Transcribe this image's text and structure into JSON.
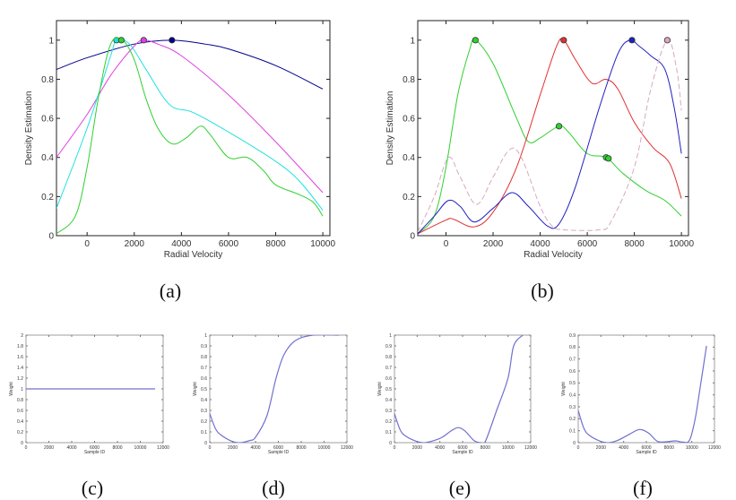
{
  "chart_data": [
    {
      "id": "a",
      "type": "line",
      "caption": "(a)",
      "xlabel": "Radial Velocity",
      "ylabel": "Density Estimation",
      "xlim": [
        -1300,
        10300
      ],
      "ylim": [
        0,
        1.1
      ],
      "xticks": [
        0,
        2000,
        4000,
        6000,
        8000,
        10000
      ],
      "yticks": [
        0,
        0.2,
        0.4,
        0.6,
        0.8,
        1
      ],
      "grid": false,
      "series": [
        {
          "color": "#00008b",
          "dash": false,
          "x": [
            -1300,
            0,
            2000,
            3600,
            5000,
            6000,
            8000,
            10000
          ],
          "y": [
            0.85,
            0.91,
            0.98,
            1.0,
            0.98,
            0.955,
            0.87,
            0.75
          ],
          "marker": [
            [
              3600,
              1
            ]
          ]
        },
        {
          "color": "#e040e0",
          "dash": false,
          "x": [
            -1300,
            0,
            1000,
            2000,
            2400,
            3000,
            4000,
            6000,
            8000,
            10000
          ],
          "y": [
            0.4,
            0.62,
            0.82,
            0.97,
            1.0,
            0.98,
            0.92,
            0.72,
            0.48,
            0.22
          ],
          "marker": [
            [
              2400,
              1
            ]
          ]
        },
        {
          "color": "#20e0e0",
          "dash": false,
          "x": [
            -1300,
            0,
            1000,
            1250,
            1800,
            2500,
            3500,
            4500,
            6000,
            8000,
            9000,
            10000
          ],
          "y": [
            0.14,
            0.55,
            0.92,
            1.0,
            0.98,
            0.85,
            0.67,
            0.63,
            0.53,
            0.38,
            0.28,
            0.13
          ],
          "marker": [
            [
              1250,
              1
            ]
          ]
        },
        {
          "color": "#30d030",
          "dash": false,
          "x": [
            -1300,
            -500,
            0,
            500,
            1000,
            1500,
            2000,
            2500,
            3000,
            3600,
            4200,
            4800,
            5200,
            6000,
            6800,
            7500,
            8000,
            9000,
            9600,
            10000
          ],
          "y": [
            0.01,
            0.1,
            0.35,
            0.72,
            0.98,
            1.0,
            0.9,
            0.7,
            0.55,
            0.47,
            0.5,
            0.56,
            0.52,
            0.4,
            0.4,
            0.33,
            0.26,
            0.21,
            0.17,
            0.1
          ],
          "marker": [
            [
              1450,
              1
            ]
          ]
        }
      ]
    },
    {
      "id": "b",
      "type": "line",
      "caption": "(b)",
      "xlabel": "Radial Velocity",
      "ylabel": "Density Estimation",
      "xlim": [
        -1200,
        10300
      ],
      "ylim": [
        0,
        1.1
      ],
      "xticks": [
        0,
        2000,
        4000,
        6000,
        8000,
        10000
      ],
      "yticks": [
        0,
        0.2,
        0.4,
        0.6,
        0.8,
        1
      ],
      "grid": false,
      "series": [
        {
          "color": "#30d030",
          "dash": false,
          "x": [
            -1200,
            -500,
            0,
            500,
            1000,
            1250,
            2000,
            3000,
            3500,
            4000,
            4800,
            5200,
            6000,
            6800,
            7500,
            8500,
            9300,
            10000
          ],
          "y": [
            0.01,
            0.1,
            0.35,
            0.72,
            0.95,
            1.0,
            0.88,
            0.6,
            0.48,
            0.5,
            0.56,
            0.53,
            0.42,
            0.4,
            0.32,
            0.23,
            0.18,
            0.1
          ],
          "marker": [
            [
              1250,
              1
            ],
            [
              4800,
              0.56
            ],
            [
              6800,
              0.4
            ],
            [
              6900,
              0.395
            ]
          ]
        },
        {
          "color": "#e03030",
          "dash": false,
          "x": [
            -1200,
            0,
            300,
            1200,
            2000,
            3000,
            4000,
            4700,
            5000,
            5500,
            6200,
            6800,
            7300,
            8000,
            8800,
            9500,
            10000
          ],
          "y": [
            0.01,
            0.08,
            0.085,
            0.045,
            0.12,
            0.35,
            0.72,
            0.97,
            1.0,
            0.9,
            0.78,
            0.8,
            0.75,
            0.58,
            0.45,
            0.37,
            0.19
          ],
          "marker": [
            [
              5000,
              1
            ]
          ]
        },
        {
          "color": "#2020c0",
          "dash": false,
          "x": [
            -1200,
            -500,
            100,
            600,
            1200,
            2000,
            2800,
            3500,
            4300,
            4800,
            5500,
            6500,
            7300,
            7800,
            8200,
            8700,
            9300,
            9700,
            10000
          ],
          "y": [
            0.01,
            0.1,
            0.18,
            0.15,
            0.07,
            0.14,
            0.22,
            0.15,
            0.05,
            0.06,
            0.25,
            0.65,
            0.93,
            1.0,
            0.97,
            0.92,
            0.85,
            0.65,
            0.42
          ],
          "marker": [
            [
              7900,
              1
            ]
          ]
        },
        {
          "color": "#d8a8c0",
          "dash": true,
          "x": [
            -1200,
            -500,
            100,
            600,
            1300,
            2000,
            2700,
            3200,
            4000,
            4500,
            5000,
            6500,
            7000,
            8000,
            8700,
            9400,
            9800,
            10000
          ],
          "y": [
            0.02,
            0.2,
            0.4,
            0.3,
            0.16,
            0.3,
            0.44,
            0.4,
            0.15,
            0.05,
            0.03,
            0.03,
            0.07,
            0.35,
            0.75,
            1.0,
            0.85,
            0.64
          ],
          "marker": [
            [
              9400,
              1
            ]
          ]
        }
      ]
    },
    {
      "id": "c",
      "type": "line",
      "caption": "(c)",
      "xlabel": "Sample ID",
      "ylabel": "Weight",
      "xlim": [
        0,
        12000
      ],
      "ylim": [
        0,
        2
      ],
      "xticks": [
        0,
        2000,
        4000,
        6000,
        8000,
        10000,
        12000
      ],
      "yticks": [
        0,
        0.2,
        0.4,
        0.6,
        0.8,
        1,
        1.2,
        1.4,
        1.6,
        1.8,
        2
      ],
      "grid": false,
      "series": [
        {
          "color": "#7070d0",
          "dash": false,
          "x": [
            0,
            11300
          ],
          "y": [
            1,
            1
          ]
        }
      ]
    },
    {
      "id": "d",
      "type": "line",
      "caption": "(d)",
      "xlabel": "Sample ID",
      "ylabel": "Weight",
      "xlim": [
        0,
        12000
      ],
      "ylim": [
        0,
        1
      ],
      "xticks": [
        0,
        2000,
        4000,
        6000,
        8000,
        10000,
        12000
      ],
      "yticks": [
        0,
        0.1,
        0.2,
        0.3,
        0.4,
        0.5,
        0.6,
        0.7,
        0.8,
        0.9,
        1
      ],
      "grid": false,
      "series": [
        {
          "color": "#7070d0",
          "dash": false,
          "x": [
            0,
            500,
            1000,
            2000,
            2700,
            3500,
            4000,
            5000,
            5800,
            6500,
            7500,
            9000,
            11300
          ],
          "y": [
            0.27,
            0.13,
            0.07,
            0.01,
            0,
            0.02,
            0.05,
            0.25,
            0.6,
            0.82,
            0.95,
            1.0,
            1.0
          ]
        }
      ]
    },
    {
      "id": "e",
      "type": "line",
      "caption": "(e)",
      "xlabel": "Sample ID",
      "ylabel": "Weight",
      "xlim": [
        0,
        12000
      ],
      "ylim": [
        0,
        1
      ],
      "xticks": [
        0,
        2000,
        4000,
        6000,
        8000,
        10000,
        12000
      ],
      "yticks": [
        0,
        0.1,
        0.2,
        0.3,
        0.4,
        0.5,
        0.6,
        0.7,
        0.8,
        0.9,
        1
      ],
      "grid": false,
      "series": [
        {
          "color": "#7070d0",
          "dash": false,
          "x": [
            0,
            500,
            1000,
            2000,
            2700,
            3500,
            4200,
            5000,
            5600,
            6200,
            7000,
            7600,
            8000,
            9000,
            10000,
            10500,
            11300
          ],
          "y": [
            0.27,
            0.12,
            0.06,
            0.01,
            0,
            0.02,
            0.05,
            0.11,
            0.14,
            0.11,
            0.02,
            0,
            0.01,
            0.3,
            0.6,
            0.9,
            1.0
          ]
        }
      ]
    },
    {
      "id": "f",
      "type": "line",
      "caption": "(f)",
      "xlabel": "Sample ID",
      "ylabel": "Weight",
      "xlim": [
        0,
        12000
      ],
      "ylim": [
        0,
        0.9
      ],
      "xticks": [
        0,
        2000,
        4000,
        6000,
        8000,
        10000,
        12000
      ],
      "yticks": [
        0,
        0.1,
        0.2,
        0.3,
        0.4,
        0.5,
        0.6,
        0.7,
        0.8,
        0.9
      ],
      "grid": false,
      "series": [
        {
          "color": "#7070d0",
          "dash": false,
          "x": [
            0,
            500,
            1000,
            2000,
            2700,
            3500,
            4500,
            5400,
            6200,
            7000,
            8000,
            8600,
            9200,
            9800,
            10300,
            10800,
            11300
          ],
          "y": [
            0.27,
            0.12,
            0.06,
            0.01,
            0,
            0.02,
            0.07,
            0.11,
            0.08,
            0.01,
            0.01,
            0.015,
            0.005,
            0.02,
            0.2,
            0.5,
            0.81
          ]
        }
      ]
    }
  ]
}
